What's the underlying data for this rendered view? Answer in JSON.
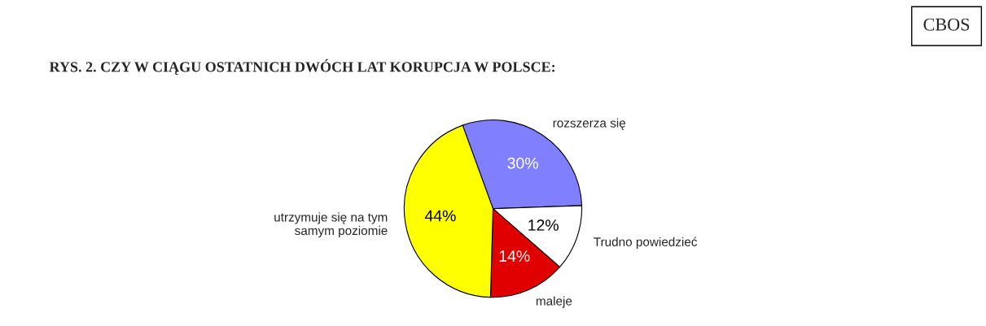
{
  "chart_data": {
    "type": "pie",
    "title": "RYS. 2. CZY W CIĄGU OSTATNICH DWÓCH LAT KORUPCJA W POLSCE:",
    "categories": [
      "rozszerza się",
      "Trudno powiedzieć",
      "maleje",
      "utrzymuje się na tym\nsamym poziomie"
    ],
    "values": [
      30,
      12,
      14,
      44
    ],
    "value_labels": [
      "30%",
      "12%",
      "14%",
      "44%"
    ],
    "colors": [
      "#8080ff",
      "#ffffff",
      "#e00000",
      "#ffff00"
    ],
    "annotations": [
      "CBOS"
    ]
  }
}
